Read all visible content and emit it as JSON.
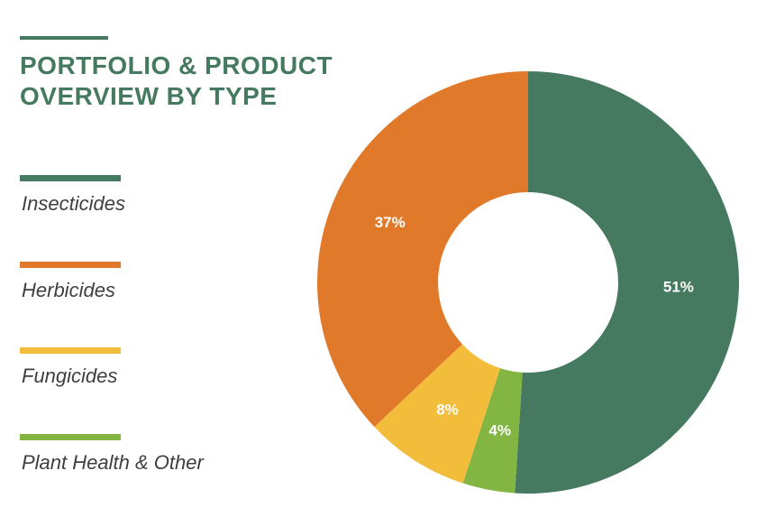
{
  "title": "PORTFOLIO & PRODUCT\nOVERVIEW BY TYPE",
  "colors": {
    "accent": "#457a60",
    "insecticides": "#457a60",
    "herbicides": "#e07a2a",
    "fungicides": "#f2bd3a",
    "plant_health_other": "#82b542"
  },
  "legend": [
    {
      "label": "Insecticides",
      "color": "#457a60"
    },
    {
      "label": "Herbicides",
      "color": "#e07a2a"
    },
    {
      "label": "Fungicides",
      "color": "#f2bd3a"
    },
    {
      "label": "Plant Health & Other",
      "color": "#82b542"
    }
  ],
  "chart_data": {
    "type": "pie",
    "variant": "donut",
    "title": "PORTFOLIO & PRODUCT\nOVERVIEW BY TYPE",
    "categories": [
      "Insecticides",
      "Plant Health & Other",
      "Fungicides",
      "Herbicides"
    ],
    "values": [
      51,
      4,
      8,
      37
    ],
    "labels": [
      "51%",
      "4%",
      "8%",
      "37%"
    ],
    "colors": [
      "#457a60",
      "#82b542",
      "#f2bd3a",
      "#e07a2a"
    ],
    "legend_position": "left"
  }
}
